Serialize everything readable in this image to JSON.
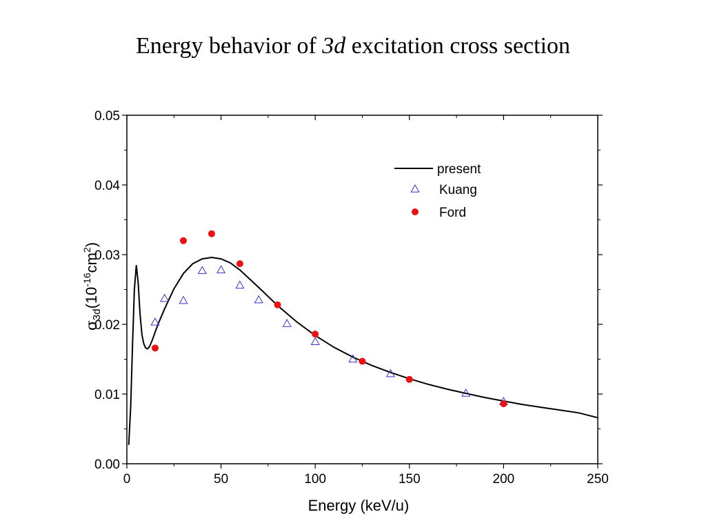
{
  "slide": {
    "title_prefix": "Energy behavior of ",
    "title_italic": "3d",
    "title_suffix": " excitation cross section"
  },
  "chart_data": {
    "type": "scatter",
    "xlabel": "Energy (keV/u)",
    "ylabel": {
      "sigma": "σ",
      "sub": "3d",
      "pre": "(10",
      "sup1": "-16",
      "mid": "cm",
      "sup2": "2",
      "post": ")"
    },
    "xlim": [
      0,
      250
    ],
    "ylim": [
      0.0,
      0.05
    ],
    "x_ticks": [
      "0",
      "50",
      "100",
      "150",
      "200",
      "250"
    ],
    "y_ticks": [
      "0.00",
      "0.01",
      "0.02",
      "0.03",
      "0.04",
      "0.05"
    ],
    "grid": false,
    "legend_position": "top-right",
    "series": [
      {
        "name": "present",
        "style": "line",
        "color": "#000000",
        "x": [
          1,
          2,
          3,
          4,
          5,
          6,
          7,
          8,
          9,
          10,
          11,
          12,
          13,
          14,
          15,
          17,
          20,
          25,
          30,
          35,
          40,
          45,
          50,
          55,
          60,
          70,
          80,
          90,
          100,
          110,
          120,
          130,
          140,
          150,
          160,
          170,
          180,
          190,
          200,
          210,
          220,
          230,
          240,
          250
        ],
        "y": [
          0.0027,
          0.008,
          0.017,
          0.025,
          0.0285,
          0.026,
          0.0215,
          0.0185,
          0.0172,
          0.0166,
          0.0165,
          0.0168,
          0.0174,
          0.0181,
          0.0189,
          0.0203,
          0.0222,
          0.0251,
          0.0273,
          0.0287,
          0.0294,
          0.0296,
          0.0294,
          0.0288,
          0.0278,
          0.0253,
          0.0227,
          0.0204,
          0.0184,
          0.0167,
          0.0153,
          0.0141,
          0.0131,
          0.0122,
          0.0114,
          0.0107,
          0.0101,
          0.0095,
          0.009,
          0.0085,
          0.0081,
          0.0077,
          0.0073,
          0.0066
        ]
      },
      {
        "name": "Kuang",
        "style": "open-triangle",
        "color": "#3333cc",
        "x": [
          15,
          20,
          30,
          40,
          50,
          60,
          70,
          85,
          100,
          120,
          140,
          180,
          200
        ],
        "y": [
          0.0203,
          0.0237,
          0.0234,
          0.0277,
          0.0278,
          0.0256,
          0.0235,
          0.0201,
          0.0175,
          0.015,
          0.0129,
          0.0101,
          0.0089
        ]
      },
      {
        "name": "Ford",
        "style": "filled-circle",
        "color": "#ee1111",
        "x": [
          15,
          30,
          45,
          60,
          80,
          100,
          125,
          150,
          200
        ],
        "y": [
          0.0166,
          0.032,
          0.033,
          0.0287,
          0.0228,
          0.0186,
          0.0147,
          0.0121,
          0.0086
        ]
      }
    ]
  }
}
